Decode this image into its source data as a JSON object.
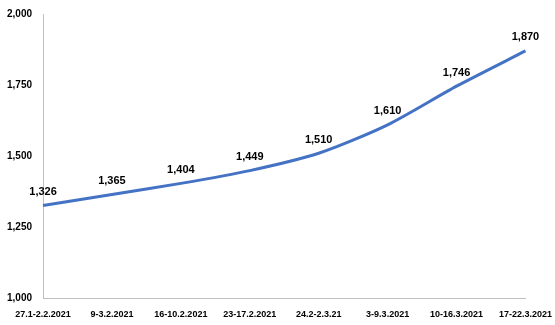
{
  "chart_data": {
    "type": "line",
    "categories": [
      "27.1-2.2.2021",
      "9-3.2.2021",
      "16-10.2.2021",
      "23-17.2.2021",
      "24.2-2.3.21",
      "3-9.3.2021",
      "10-16.3.2021",
      "17-22.3.2021"
    ],
    "values": [
      1326,
      1365,
      1404,
      1449,
      1510,
      1610,
      1746,
      1870
    ],
    "value_labels": [
      "1,326",
      "1,365",
      "1,404",
      "1,449",
      "1,510",
      "1,610",
      "1,746",
      "1,870"
    ],
    "color": "#4472c4",
    "ylim": [
      1000,
      2000
    ],
    "yticks": [
      {
        "value": 1000,
        "label": "1,000"
      },
      {
        "value": 1250,
        "label": "1,250"
      },
      {
        "value": 1500,
        "label": "1,500"
      },
      {
        "value": 1750,
        "label": "1,750"
      },
      {
        "value": 2000,
        "label": "2,000"
      }
    ],
    "grid": false,
    "data_labels": true
  }
}
